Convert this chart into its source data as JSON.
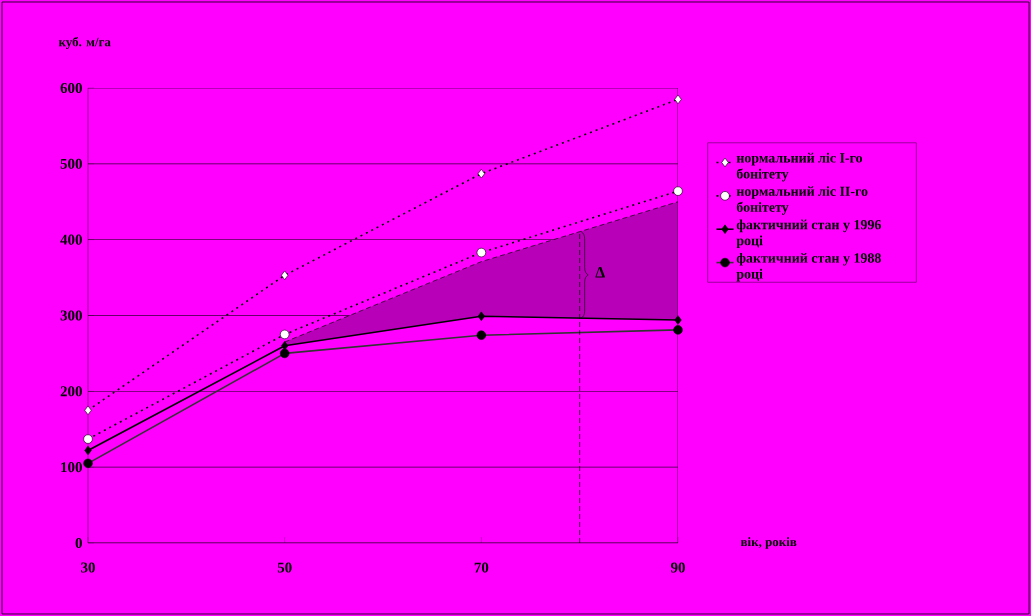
{
  "chart_data": {
    "type": "line",
    "xlabel": "вік, років",
    "ylabel": "куб. м/га",
    "x": [
      30,
      50,
      70,
      90
    ],
    "xlim": [
      30,
      90
    ],
    "xticks": [
      30,
      50,
      70,
      90
    ],
    "ylim": [
      0,
      600
    ],
    "yticks": [
      0,
      100,
      200,
      300,
      400,
      500,
      600
    ],
    "grid": "y",
    "legend": "right",
    "series": [
      {
        "name": "нормальний ліс I-го бонітету",
        "color": "#000000",
        "values": [
          175,
          353,
          487,
          585
        ],
        "marker": "diamond",
        "line_style": "dotted"
      },
      {
        "name": "нормальний ліс II-го бонітету",
        "color": "#000000",
        "values": [
          137,
          275,
          383,
          464
        ],
        "marker": "circle",
        "line_style": "dotted"
      },
      {
        "name": "фактичний стан у 1996 році",
        "color": "#000000",
        "values": [
          122,
          260,
          299,
          294
        ],
        "marker": "diamond",
        "line_style": "solid"
      },
      {
        "name": "фактичний стан у 1988 році",
        "color": "#333333",
        "values": [
          105,
          250,
          274,
          281
        ],
        "marker": "circle",
        "line_style": "solid"
      },
      {
        "color": "#000000",
        "x": [
          50,
          70,
          90
        ],
        "values": [
          265,
          371,
          450
        ],
        "lower": [
          260,
          299,
          294
        ],
        "upper": [
          265,
          371,
          450
        ],
        "marker": "none",
        "line_style": "dashed"
      }
    ],
    "ref_lines": [
      {
        "axis": "x",
        "value": 80,
        "line_style": "dashed",
        "color": "#000000"
      }
    ],
    "annotations": [
      {
        "text": "Δ",
        "x": 80,
        "y": 357
      }
    ]
  }
}
